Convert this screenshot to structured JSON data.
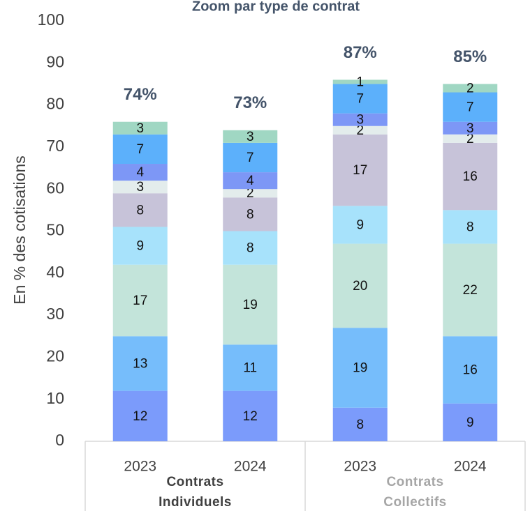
{
  "chart_data": {
    "type": "stacked_bar",
    "title": "Zoom par type de contrat",
    "ylabel": "En % des cotisations",
    "categories": [
      "2023",
      "2024",
      "2023",
      "2024"
    ],
    "groups": [
      {
        "label": "Contrats Individuels",
        "color": "#404040"
      },
      {
        "label": "Contrats Collectifs",
        "color": "#a6a6a6"
      }
    ],
    "series": [
      {
        "color": "#7b9bfb",
        "values": [
          12,
          12,
          8,
          9
        ]
      },
      {
        "color": "#76bdfb",
        "values": [
          13,
          11,
          19,
          16
        ]
      },
      {
        "color": "#c3e4da",
        "values": [
          17,
          19,
          20,
          22
        ]
      },
      {
        "color": "#a7e2fb",
        "values": [
          9,
          8,
          9,
          8
        ]
      },
      {
        "color": "#c7c3d9",
        "values": [
          8,
          8,
          17,
          16
        ]
      },
      {
        "color": "#e3ecec",
        "values": [
          3,
          2,
          2,
          2
        ]
      },
      {
        "color": "#7d97f6",
        "values": [
          4,
          4,
          3,
          3
        ]
      },
      {
        "color": "#5cb0fb",
        "values": [
          7,
          7,
          7,
          7
        ]
      },
      {
        "color": "#a0d7c3",
        "values": [
          3,
          3,
          1,
          2
        ]
      }
    ],
    "totals": [
      74,
      73,
      87,
      85
    ],
    "total_labels": [
      "74%",
      "73%",
      "87%",
      "85%"
    ],
    "ylim": [
      0,
      100
    ],
    "yticks": [
      0,
      10,
      20,
      30,
      40,
      50,
      60,
      70,
      80,
      90,
      100
    ],
    "grid": false
  }
}
